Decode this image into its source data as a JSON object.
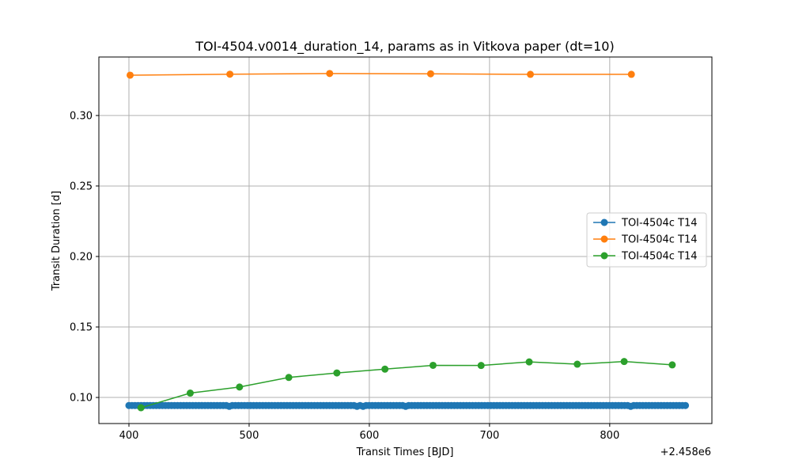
{
  "chart_data": {
    "type": "line",
    "title": "TOI-4504.v0014_duration_14, params as in Vitkova paper (dt=10)",
    "xlabel": "Transit Times [BJD]",
    "ylabel": "Transit Duration [d]",
    "x_offset_label": "+2.458e6",
    "xlim": [
      375,
      885
    ],
    "ylim": [
      0.0815,
      0.3415
    ],
    "x_ticks": [
      400,
      500,
      600,
      700,
      800
    ],
    "x_tick_labels": [
      "400",
      "500",
      "600",
      "700",
      "800"
    ],
    "y_ticks": [
      0.1,
      0.15,
      0.2,
      0.25,
      0.3
    ],
    "y_tick_labels": [
      "0.10",
      "0.15",
      "0.20",
      "0.25",
      "0.30"
    ],
    "grid": true,
    "legend_position": "center-right",
    "series": [
      {
        "name": "TOI-4504c T14",
        "color": "#1f77b4",
        "dense": {
          "start": 400,
          "end": 863,
          "step": 2.53,
          "value": 0.0943,
          "dips": [
            {
              "x": 483,
              "value": 0.0937
            },
            {
              "x": 590,
              "value": 0.0937
            },
            {
              "x": 596,
              "value": 0.0937
            },
            {
              "x": 630,
              "value": 0.0937
            },
            {
              "x": 818,
              "value": 0.0937
            }
          ]
        }
      },
      {
        "name": "TOI-4504c T14",
        "color": "#ff7f0e",
        "x": [
          401,
          484,
          567,
          651,
          734,
          818
        ],
        "y": [
          0.3286,
          0.3293,
          0.3298,
          0.3296,
          0.3292,
          0.3292
        ]
      },
      {
        "name": "TOI-4504c T14",
        "color": "#2ca02c",
        "x": [
          410,
          451,
          492,
          533,
          573,
          613,
          653,
          693,
          733,
          773,
          812,
          852
        ],
        "y": [
          0.0927,
          0.1031,
          0.1074,
          0.1142,
          0.1174,
          0.1201,
          0.1228,
          0.1227,
          0.1252,
          0.1236,
          0.1255,
          0.1231
        ]
      }
    ]
  }
}
